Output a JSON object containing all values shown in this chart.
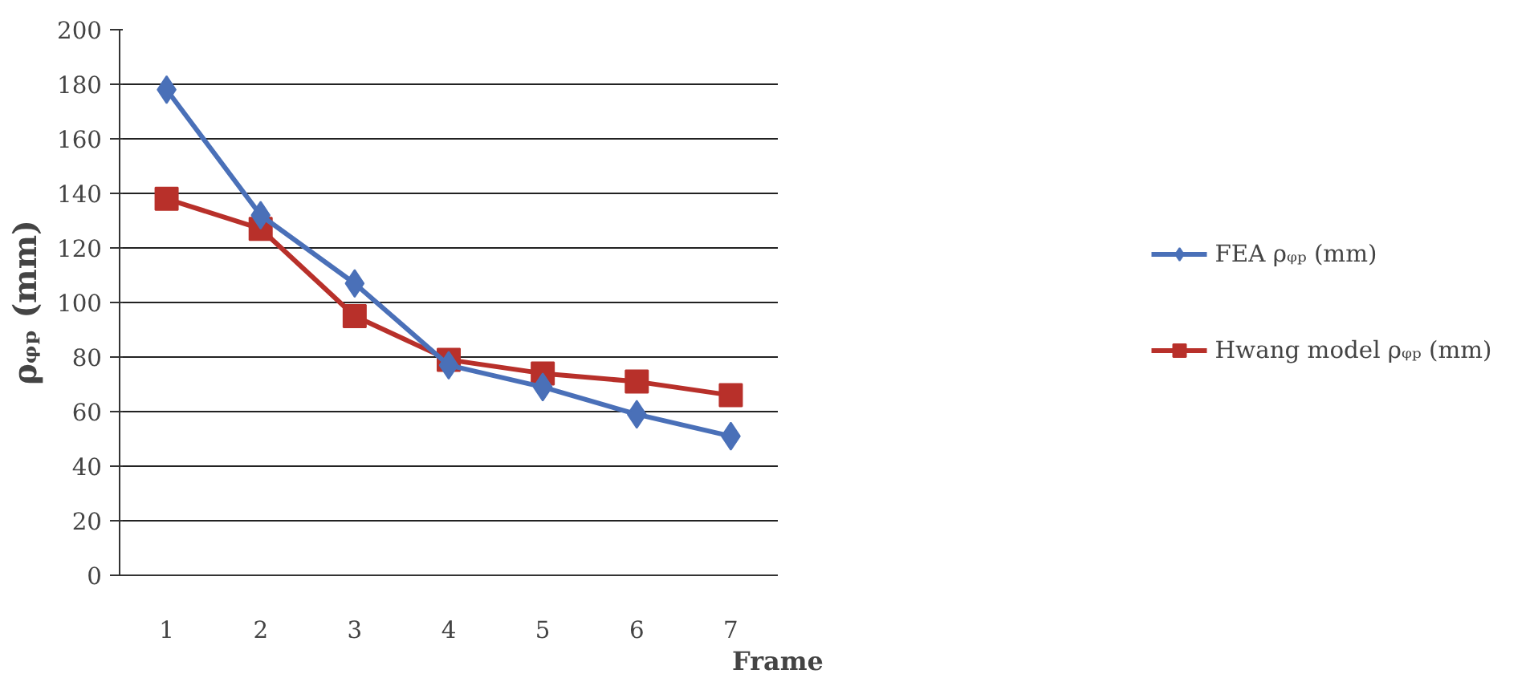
{
  "chart_data": {
    "type": "line",
    "xlabel": "Frame",
    "ylabel": "ρᵩₚ (mm)",
    "categories": [
      "1",
      "2",
      "3",
      "4",
      "5",
      "6",
      "7"
    ],
    "series": [
      {
        "name": "FEA ρᵩₚ (mm)",
        "color": "#4a70b8",
        "marker": "diamond",
        "values": [
          178,
          132,
          107,
          77,
          69,
          59,
          51
        ]
      },
      {
        "name": "Hwang model ρᵩₚ (mm)",
        "color": "#b8302a",
        "marker": "square",
        "values": [
          138,
          127,
          95,
          79,
          74,
          71,
          66
        ]
      }
    ],
    "ylim": [
      0,
      200
    ],
    "yticks": [
      0,
      20,
      40,
      60,
      80,
      100,
      120,
      140,
      160,
      180,
      200
    ],
    "grid": "y",
    "legend": "right"
  }
}
